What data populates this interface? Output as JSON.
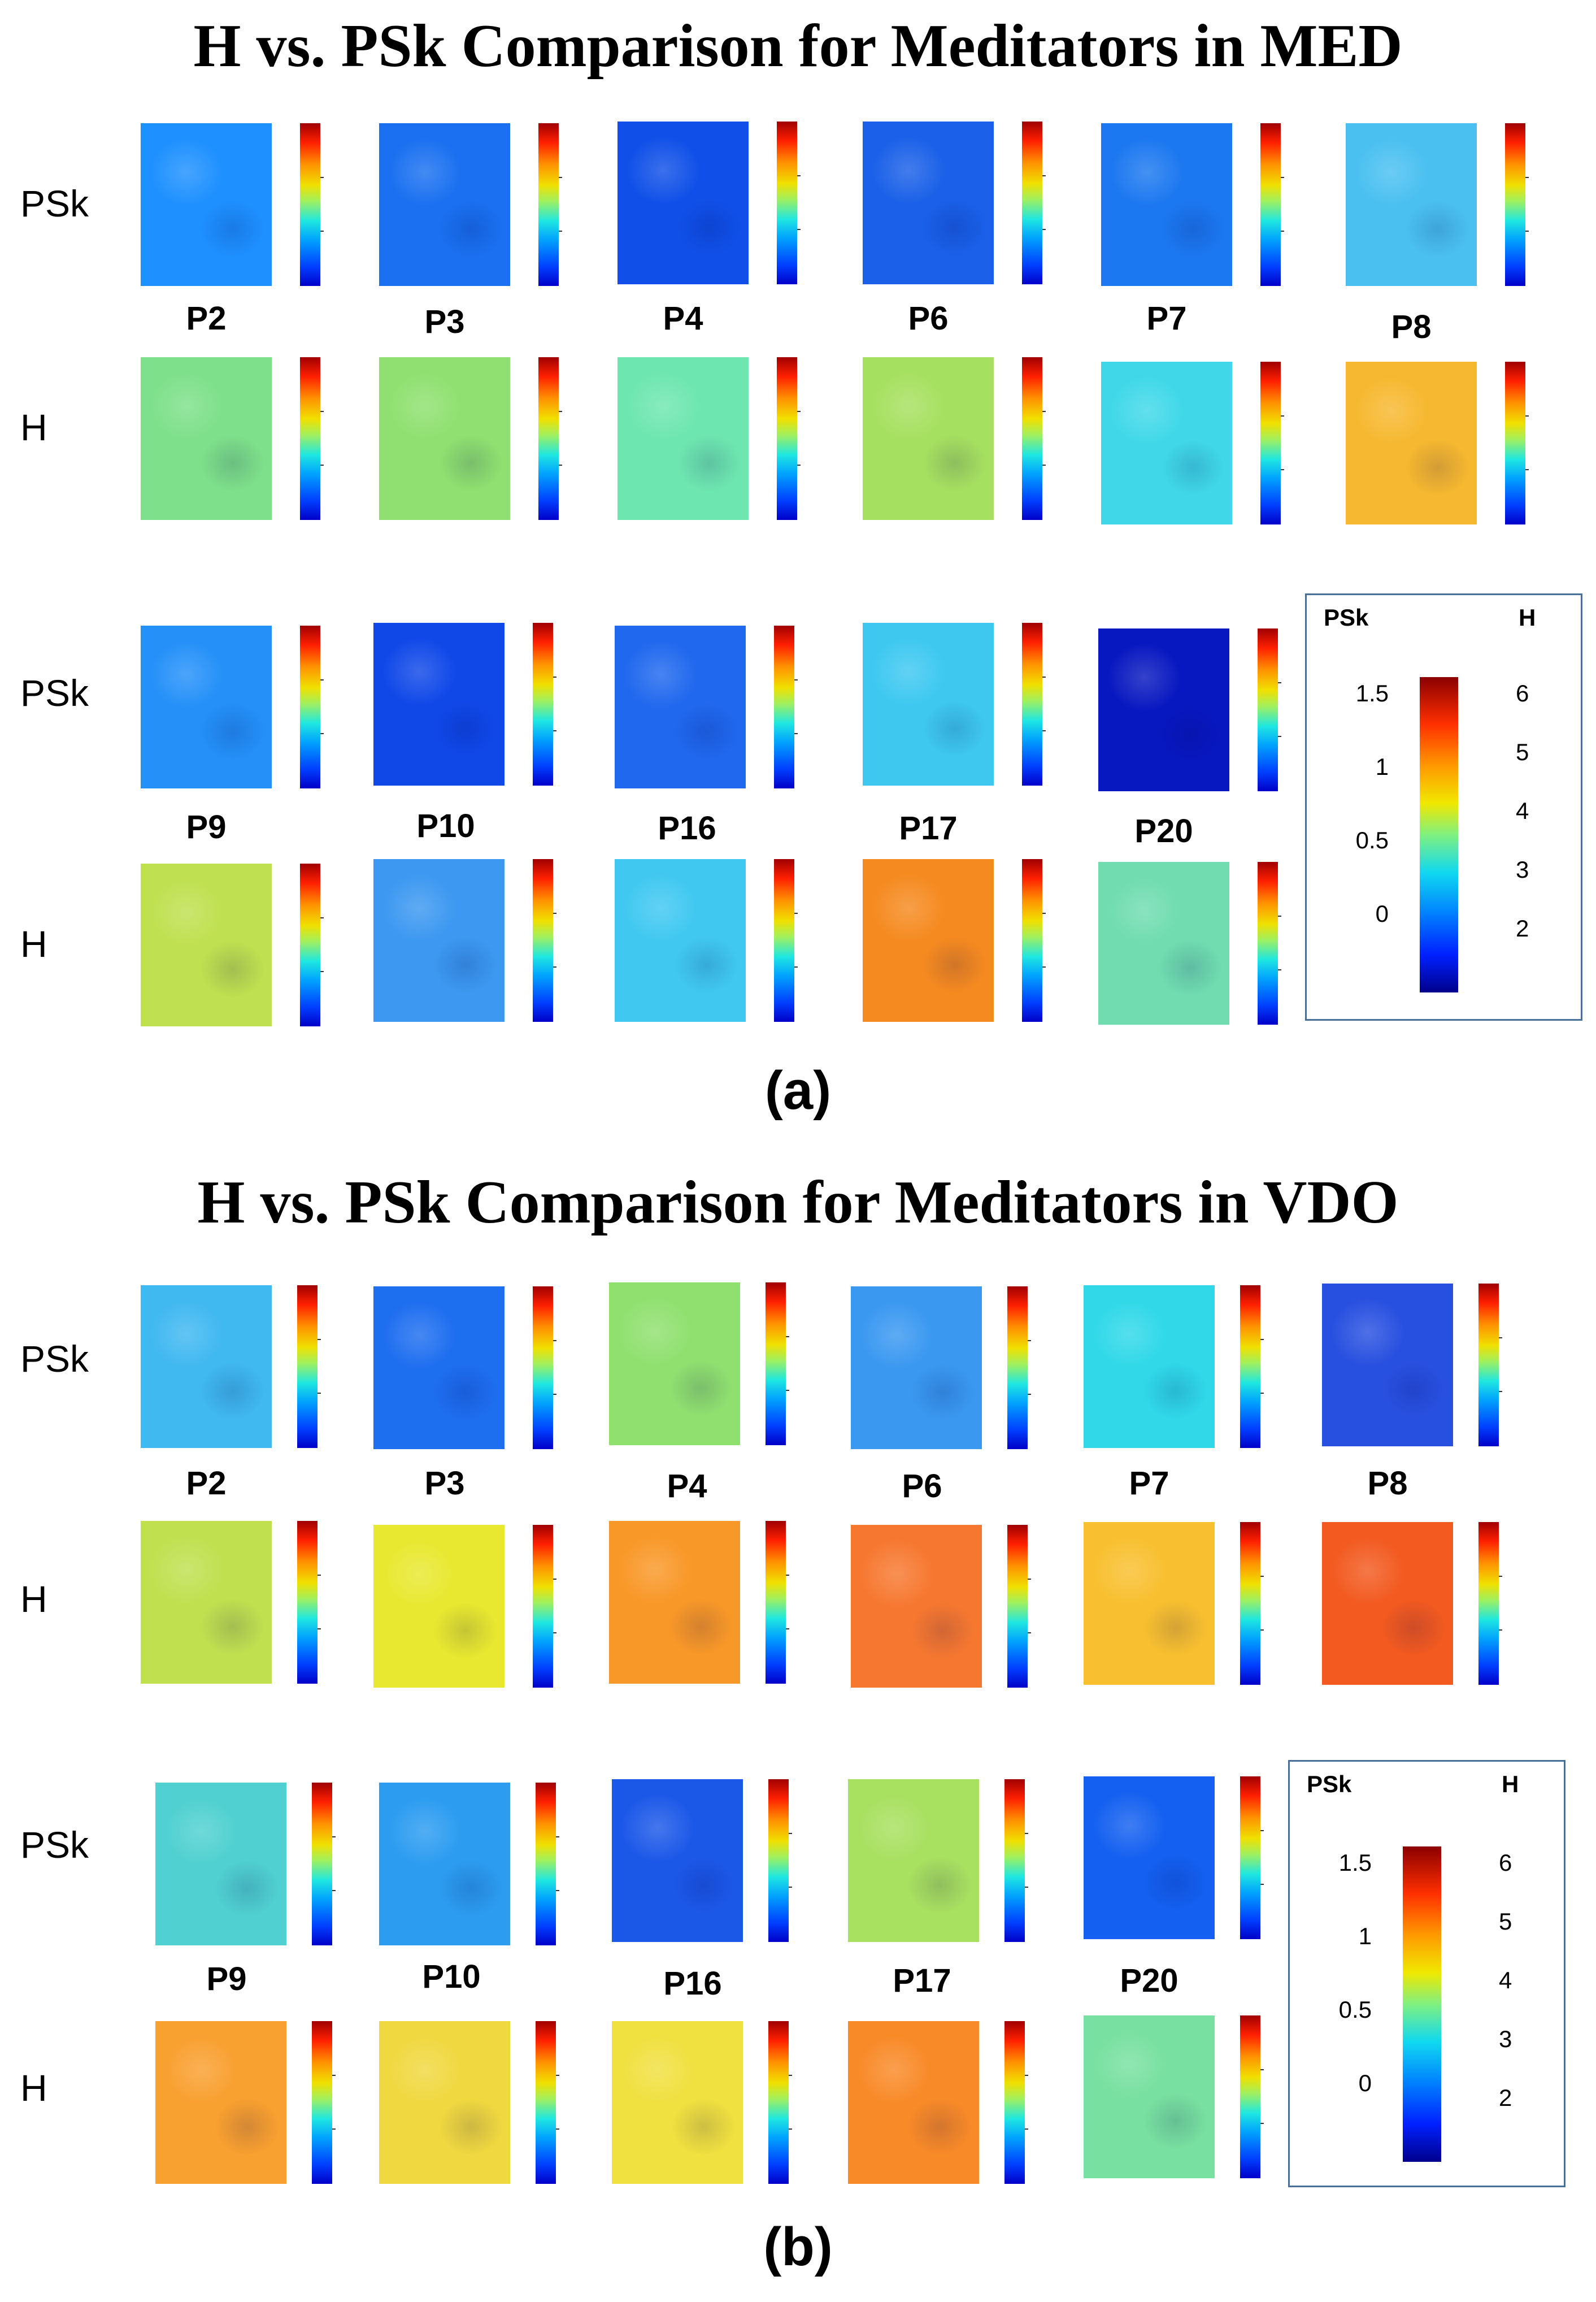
{
  "panels": [
    {
      "title": "H vs. PSk Comparison for Meditators in MED",
      "caption": "(a)",
      "row_labels": {
        "psk": "PSk",
        "h": "H"
      },
      "group1": [
        "P2",
        "P3",
        "P4",
        "P6",
        "P7",
        "P8"
      ],
      "group2": [
        "P9",
        "P10",
        "P16",
        "P17",
        "P20"
      ],
      "maps": {
        "psk1": [
          "#1e90ff",
          "#1a70f0",
          "#1050e8",
          "#1a60e8",
          "#1c78f0",
          "#4ac0f0"
        ],
        "h1": [
          "#7ee08a",
          "#8fe070",
          "#6ee6b0",
          "#a6e060",
          "#40d8e8",
          "#f6b830"
        ],
        "psk2": [
          "#2490f8",
          "#1048e8",
          "#2068ee",
          "#3ec8f0",
          "#0818c0"
        ],
        "h2": [
          "#bfe050",
          "#3c98f0",
          "#40c8f0",
          "#f58a20",
          "#70dcb0"
        ]
      },
      "legend": {
        "left_head": "PSk",
        "right_head": "H",
        "left_ticks": [
          "1.5",
          "1",
          "0.5",
          "0"
        ],
        "right_ticks": [
          "6",
          "5",
          "4",
          "3",
          "2"
        ]
      }
    },
    {
      "title": "H vs. PSk Comparison for Meditators in VDO",
      "caption": "(b)",
      "row_labels": {
        "psk": "PSk",
        "h": "H"
      },
      "group1": [
        "P2",
        "P3",
        "P4",
        "P6",
        "P7",
        "P8"
      ],
      "group2": [
        "P9",
        "P10",
        "P16",
        "P17",
        "P20"
      ],
      "maps": {
        "psk1": [
          "#40b8f0",
          "#1e6ef0",
          "#90e070",
          "#3a98f0",
          "#30d8e8",
          "#2850e0"
        ],
        "h1": [
          "#c0e050",
          "#e8e830",
          "#f89828",
          "#f67830",
          "#f8c030",
          "#f25a20"
        ],
        "psk2": [
          "#50d0d0",
          "#2c9cf0",
          "#1c58e8",
          "#a8e060",
          "#1460f0"
        ],
        "h2": [
          "#f8a030",
          "#f0d840",
          "#f0e040",
          "#f88a28",
          "#78e0a0"
        ]
      },
      "legend": {
        "left_head": "PSk",
        "right_head": "H",
        "left_ticks": [
          "1.5",
          "1",
          "0.5",
          "0"
        ],
        "right_ticks": [
          "6",
          "5",
          "4",
          "3",
          "2"
        ]
      }
    }
  ]
}
